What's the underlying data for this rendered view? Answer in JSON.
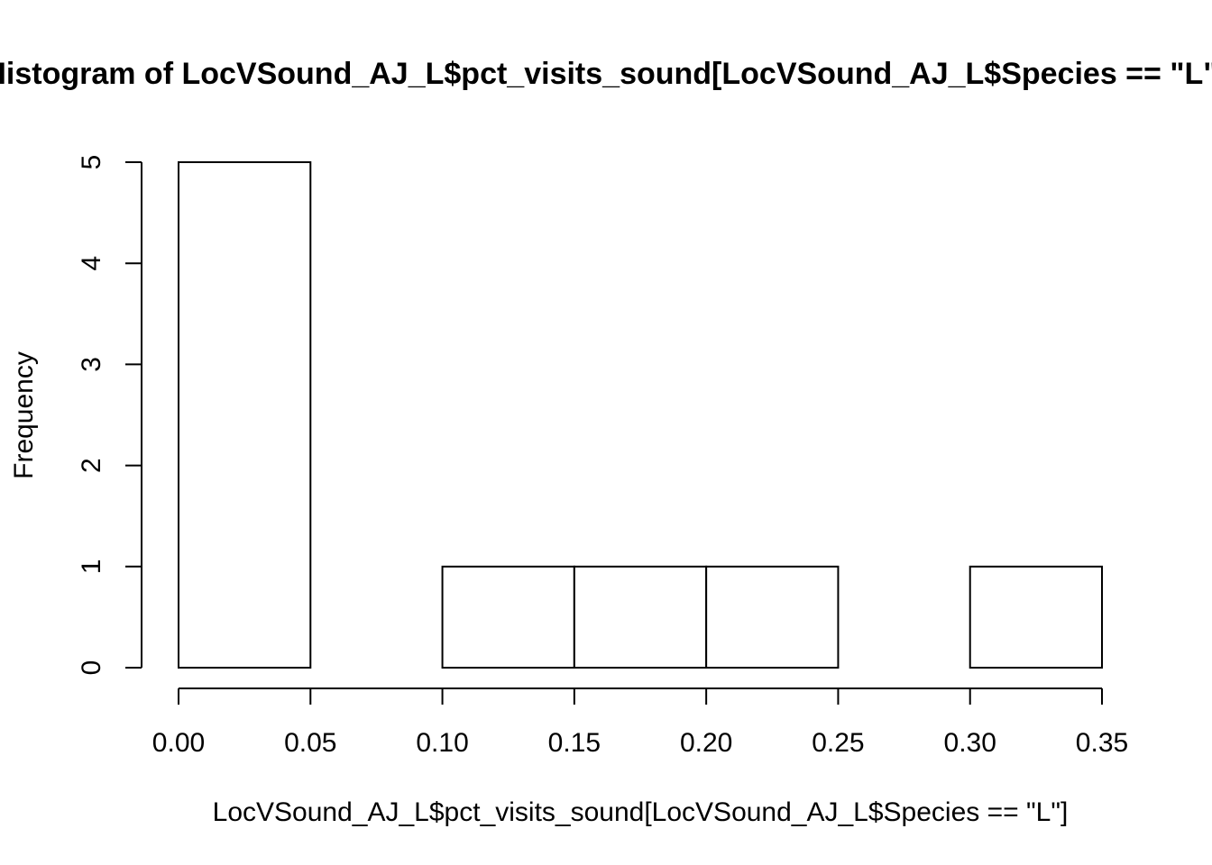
{
  "chart_data": {
    "type": "bar",
    "title": "Histogram of LocVSound_AJ_L$pct_visits_sound[LocVSound_AJ_L$Species == \"L\"]",
    "xlabel": "LocVSound_AJ_L$pct_visits_sound[LocVSound_AJ_L$Species == \"L\"]",
    "ylabel": "Frequency",
    "bins": [
      {
        "from": 0.0,
        "to": 0.05,
        "count": 5
      },
      {
        "from": 0.05,
        "to": 0.1,
        "count": 0
      },
      {
        "from": 0.1,
        "to": 0.15,
        "count": 1
      },
      {
        "from": 0.15,
        "to": 0.2,
        "count": 1
      },
      {
        "from": 0.2,
        "to": 0.25,
        "count": 1
      },
      {
        "from": 0.25,
        "to": 0.3,
        "count": 0
      },
      {
        "from": 0.3,
        "to": 0.35,
        "count": 1
      }
    ],
    "xlim": [
      0,
      0.35
    ],
    "ylim": [
      0,
      5
    ],
    "x_ticks": [
      {
        "value": 0.0,
        "label": "0.00"
      },
      {
        "value": 0.05,
        "label": "0.05"
      },
      {
        "value": 0.1,
        "label": "0.10"
      },
      {
        "value": 0.15,
        "label": "0.15"
      },
      {
        "value": 0.2,
        "label": "0.20"
      },
      {
        "value": 0.25,
        "label": "0.25"
      },
      {
        "value": 0.3,
        "label": "0.30"
      },
      {
        "value": 0.35,
        "label": "0.35"
      }
    ],
    "y_ticks": [
      {
        "value": 0,
        "label": "0"
      },
      {
        "value": 1,
        "label": "1"
      },
      {
        "value": 2,
        "label": "2"
      },
      {
        "value": 3,
        "label": "3"
      },
      {
        "value": 4,
        "label": "4"
      },
      {
        "value": 5,
        "label": "5"
      }
    ],
    "grid": false,
    "legend": "none"
  }
}
